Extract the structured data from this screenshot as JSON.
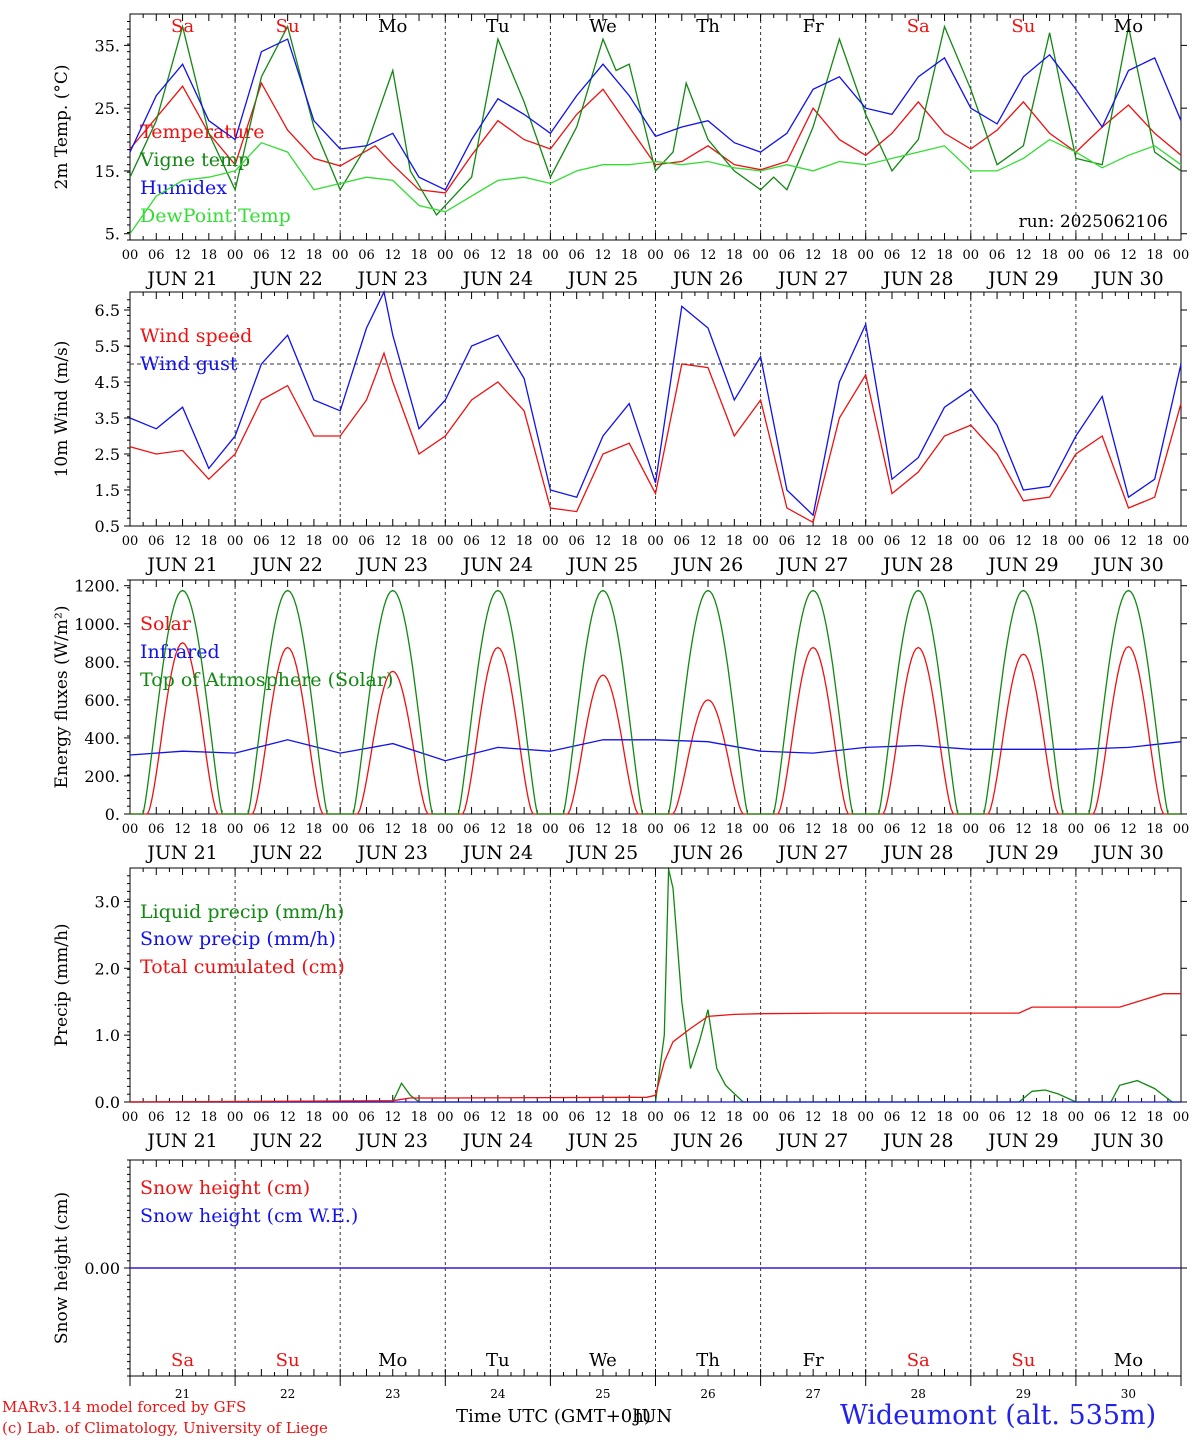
{
  "footer": {
    "model_credit": "MARv3.14 model forced by GFS",
    "copyright": "(c) Lab. of Climatology, University of Liege",
    "station": "Wideumont (alt. 535m)",
    "time_axis_label": "Time UTC (GMT+0h)",
    "time_axis_overlap": "JUN"
  },
  "colors": {
    "red": "#ee1111",
    "blue": "#1111ee",
    "dark_green": "#118811",
    "light_green": "#33dd33",
    "black": "#000000"
  },
  "days": [
    "Sa",
    "Su",
    "Mo",
    "Tu",
    "We",
    "Th",
    "Fr",
    "Sa",
    "Su",
    "Mo"
  ],
  "weekend_flags": [
    true,
    true,
    false,
    false,
    false,
    false,
    false,
    true,
    true,
    false
  ],
  "dates": [
    "JUN 21",
    "JUN 22",
    "JUN 23",
    "JUN 24",
    "JUN 25",
    "JUN 26",
    "JUN 27",
    "JUN 28",
    "JUN 29",
    "JUN 30"
  ],
  "day_numbers": [
    "21",
    "22",
    "23",
    "24",
    "25",
    "26",
    "27",
    "28",
    "29",
    "30"
  ],
  "hour_labels": [
    "00",
    "06",
    "12",
    "18"
  ],
  "chart_data": [
    {
      "type": "line",
      "ylabel": "2m Temp. (°C)",
      "yticks": [
        "35.",
        "25.",
        "15.",
        "5."
      ],
      "ytick_values": [
        35,
        25,
        15,
        5
      ],
      "ylim": [
        4,
        40
      ],
      "annotation": "run: 2025062106",
      "x_hours": [
        0,
        240
      ],
      "series": [
        {
          "name": "Temperature",
          "color_key": "red",
          "x": [
            0,
            12,
            18,
            24,
            30,
            36,
            42,
            48,
            56,
            60,
            66,
            72,
            78,
            84,
            90,
            96,
            102,
            108,
            114,
            120,
            126,
            132,
            138,
            144,
            150,
            156,
            162,
            168,
            174,
            180,
            186,
            192,
            198,
            204,
            210,
            216,
            222,
            228,
            234,
            240
          ],
          "values": [
            18.5,
            28.5,
            21,
            16,
            29,
            21.5,
            17,
            15.8,
            19,
            16,
            12,
            11.5,
            17.5,
            23,
            20,
            18.5,
            24,
            28,
            22,
            16,
            16.5,
            19,
            16,
            15.2,
            16.5,
            25,
            20,
            17.5,
            21,
            26,
            21,
            18.5,
            21.5,
            26,
            21,
            18,
            22,
            25.5,
            21,
            17.5
          ]
        },
        {
          "name": "Vigne temp",
          "color_key": "dark_green",
          "x": [
            0,
            6,
            12,
            18,
            24,
            30,
            36,
            42,
            48,
            54,
            57,
            60,
            64,
            70,
            78,
            84,
            90,
            96,
            102,
            108,
            111,
            114,
            120,
            124,
            127,
            132,
            138,
            144,
            147,
            150,
            156,
            162,
            168,
            174,
            180,
            186,
            192,
            198,
            204,
            210,
            216,
            222,
            228,
            234,
            240
          ],
          "values": [
            14,
            23,
            38,
            21,
            12,
            30,
            38,
            22,
            12,
            19,
            25,
            31,
            15,
            8,
            14,
            36,
            26,
            14,
            22,
            36,
            31,
            32,
            15,
            18,
            29,
            20,
            15,
            12,
            14,
            12,
            22,
            36,
            24,
            15,
            20,
            38,
            28,
            16,
            19,
            37,
            17,
            16,
            38,
            18,
            15
          ]
        },
        {
          "name": "Humidex",
          "color_key": "blue",
          "x": [
            0,
            6,
            12,
            18,
            24,
            30,
            36,
            42,
            48,
            54,
            60,
            66,
            72,
            78,
            84,
            90,
            96,
            102,
            108,
            114,
            120,
            126,
            132,
            138,
            144,
            150,
            156,
            162,
            168,
            174,
            180,
            186,
            192,
            198,
            204,
            210,
            216,
            222,
            228,
            234,
            240
          ],
          "values": [
            18,
            27,
            32,
            23,
            20,
            34,
            36,
            23,
            18.5,
            19,
            21,
            14,
            12,
            20,
            26.5,
            24,
            21,
            27,
            32,
            27,
            20.5,
            22,
            23,
            19.5,
            18,
            21,
            28,
            30,
            25,
            24,
            30,
            33,
            25,
            22.5,
            30,
            33.5,
            28,
            22,
            31,
            33,
            23
          ]
        },
        {
          "name": "DewPoint Temp",
          "color_key": "light_green",
          "x": [
            0,
            6,
            12,
            18,
            24,
            30,
            36,
            42,
            48,
            54,
            60,
            66,
            72,
            78,
            84,
            90,
            96,
            102,
            108,
            114,
            120,
            126,
            132,
            138,
            144,
            150,
            156,
            162,
            168,
            174,
            180,
            186,
            192,
            198,
            204,
            210,
            216,
            222,
            228,
            234,
            240
          ],
          "values": [
            5,
            11,
            13.5,
            14,
            15,
            19.5,
            18,
            12,
            13,
            14,
            13.5,
            9.5,
            8.5,
            11,
            13.5,
            14,
            13,
            15,
            16,
            16,
            16.5,
            16,
            16.5,
            15.5,
            15,
            16,
            15,
            16.5,
            16,
            17,
            18,
            19,
            15,
            15,
            17,
            20,
            18,
            15.5,
            17.5,
            19,
            16
          ]
        }
      ]
    },
    {
      "type": "line",
      "ylabel": "10m Wind (m/s)",
      "yticks": [
        "6.5",
        "5.5",
        "4.5",
        "3.5",
        "2.5",
        "1.5",
        "0.5"
      ],
      "ytick_values": [
        6.5,
        5.5,
        4.5,
        3.5,
        2.5,
        1.5,
        0.5
      ],
      "ylim": [
        0.5,
        7.0
      ],
      "reference_line": 5.0,
      "series": [
        {
          "name": "Wind speed",
          "color_key": "red",
          "x": [
            0,
            6,
            12,
            18,
            24,
            30,
            36,
            42,
            48,
            54,
            58,
            60,
            66,
            72,
            78,
            84,
            90,
            96,
            102,
            108,
            114,
            120,
            126,
            132,
            138,
            144,
            150,
            156,
            162,
            168,
            174,
            180,
            186,
            192,
            198,
            204,
            210,
            216,
            222,
            228,
            234,
            240
          ],
          "values": [
            2.7,
            2.5,
            2.6,
            1.8,
            2.5,
            4,
            4.4,
            3,
            3,
            4,
            5.3,
            4.5,
            2.5,
            3,
            4,
            4.5,
            3.7,
            1,
            0.9,
            2.5,
            2.8,
            1.4,
            5,
            4.9,
            3,
            4,
            1,
            0.6,
            3.5,
            4.7,
            1.4,
            2,
            3,
            3.3,
            2.5,
            1.2,
            1.3,
            2.5,
            3,
            1,
            1.3,
            3.9
          ]
        },
        {
          "name": "Wind gust",
          "color_key": "blue",
          "x": [
            0,
            6,
            12,
            18,
            24,
            30,
            36,
            42,
            48,
            54,
            58,
            60,
            66,
            72,
            78,
            84,
            90,
            96,
            102,
            108,
            114,
            120,
            126,
            132,
            138,
            144,
            150,
            156,
            162,
            168,
            174,
            180,
            186,
            192,
            198,
            204,
            210,
            216,
            222,
            228,
            234,
            240
          ],
          "values": [
            3.5,
            3.2,
            3.8,
            2.1,
            3,
            5,
            5.8,
            4,
            3.7,
            6,
            7,
            5.8,
            3.2,
            4,
            5.5,
            5.8,
            4.6,
            1.5,
            1.3,
            3,
            3.9,
            1.7,
            6.6,
            6,
            4,
            5.2,
            1.5,
            0.8,
            4.5,
            6.1,
            1.8,
            2.4,
            3.8,
            4.3,
            3.3,
            1.5,
            1.6,
            3,
            4.1,
            1.3,
            1.8,
            5
          ]
        }
      ]
    },
    {
      "type": "line",
      "ylabel": "Energy fluxes (W/m²)",
      "yticks": [
        "1200.",
        "1000.",
        "800.",
        "600.",
        "400.",
        "200.",
        "0."
      ],
      "ytick_values": [
        1200,
        1000,
        800,
        600,
        400,
        200,
        0
      ],
      "ylim": [
        0,
        1230
      ],
      "series": [
        {
          "name": "Solar",
          "color_key": "red",
          "daily_peak_w": [
            900,
            875,
            750,
            875,
            730,
            600,
            875,
            875,
            840,
            880
          ]
        },
        {
          "name": "Infrared",
          "color_key": "blue",
          "x": [
            0,
            12,
            24,
            36,
            48,
            60,
            72,
            84,
            96,
            108,
            120,
            132,
            144,
            156,
            168,
            180,
            192,
            204,
            216,
            228,
            240
          ],
          "values": [
            310,
            330,
            320,
            390,
            320,
            370,
            280,
            350,
            330,
            390,
            390,
            380,
            330,
            320,
            350,
            360,
            340,
            340,
            340,
            350,
            380
          ]
        },
        {
          "name": "Top of Atmosphere (Solar)",
          "color_key": "dark_green",
          "daily_peak_w": [
            1175,
            1175,
            1175,
            1175,
            1175,
            1175,
            1175,
            1175,
            1175,
            1175
          ]
        }
      ]
    },
    {
      "type": "line",
      "ylabel": "Precip (mm/h)",
      "yticks": [
        "3.0",
        "2.0",
        "1.0",
        "0.0"
      ],
      "ytick_values": [
        3,
        2,
        1,
        0
      ],
      "ylim": [
        0,
        3.5
      ],
      "series": [
        {
          "name": "Liquid precip (mm/h)",
          "color_key": "dark_green",
          "x": [
            0,
            60,
            62,
            64,
            66,
            72,
            120,
            122,
            123,
            124,
            126,
            128,
            130,
            132,
            134,
            136,
            140,
            150,
            203,
            206,
            209,
            212,
            216,
            224,
            226,
            230,
            234,
            238,
            240
          ],
          "values": [
            0,
            0,
            0.28,
            0.1,
            0,
            0,
            0,
            1,
            3.48,
            3.2,
            1.5,
            0.5,
            0.9,
            1.38,
            0.5,
            0.25,
            0,
            0,
            0,
            0.16,
            0.18,
            0.12,
            0,
            0,
            0.25,
            0.32,
            0.2,
            0,
            0
          ]
        },
        {
          "name": "Snow precip (mm/h)",
          "color_key": "blue",
          "x": [
            0,
            240
          ],
          "values": [
            0,
            0
          ]
        },
        {
          "name": "Total cumulated (cm)",
          "color_key": "red",
          "x": [
            0,
            60,
            64,
            72,
            118,
            120,
            122,
            124,
            128,
            132,
            138,
            144,
            160,
            180,
            200,
            203,
            206,
            220,
            226,
            230,
            236,
            240
          ],
          "values": [
            0,
            0.02,
            0.06,
            0.06,
            0.07,
            0.1,
            0.6,
            0.9,
            1.1,
            1.28,
            1.31,
            1.32,
            1.33,
            1.33,
            1.33,
            1.33,
            1.42,
            1.42,
            1.42,
            1.5,
            1.62,
            1.62
          ]
        }
      ]
    },
    {
      "type": "line",
      "ylabel": "Snow height (cm)",
      "yticks": [
        "0.00"
      ],
      "ytick_values": [
        0
      ],
      "ylim": [
        -1,
        1
      ],
      "series": [
        {
          "name": "Snow height (cm)",
          "color_key": "red",
          "x": [
            0,
            240
          ],
          "values": [
            0,
            0
          ]
        },
        {
          "name": "Snow height (cm W.E.)",
          "color_key": "blue",
          "x": [
            0,
            240
          ],
          "values": [
            0,
            0
          ]
        }
      ]
    }
  ]
}
